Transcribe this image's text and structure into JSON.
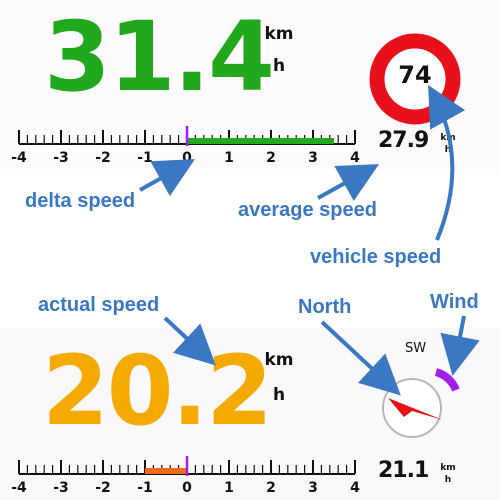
{
  "top_panel": {
    "delta_speed_value": "31.4",
    "speed_unit_top": "km",
    "speed_unit_bottom": "h",
    "scale_labels": [
      "-4",
      "-3",
      "-2",
      "-1",
      "0",
      "1",
      "2",
      "3",
      "4"
    ],
    "delta_bar": {
      "from": 0,
      "to": 3.5,
      "color": "#22a81c"
    },
    "average_speed_value": "27.9",
    "small_unit_top": "km",
    "small_unit_bottom": "h",
    "speed_limit_sign": {
      "value": "74",
      "ring_color": "#e8101a"
    }
  },
  "bottom_panel": {
    "actual_speed_value": "20.2",
    "speed_unit_top": "km",
    "speed_unit_bottom": "h",
    "scale_labels": [
      "-4",
      "-3",
      "-2",
      "-1",
      "0",
      "1",
      "2",
      "3",
      "4"
    ],
    "delta_bar": {
      "from": -1,
      "to": 0,
      "color": "#f06a1a"
    },
    "average_speed_value": "21.1",
    "small_unit_top": "km",
    "small_unit_bottom": "h",
    "compass": {
      "wind_label": "SW",
      "arrow_color": "#e81010",
      "wind_color": "#a020f0"
    }
  },
  "annotations": {
    "delta_speed": "delta speed",
    "average_speed": "average speed",
    "vehicle_speed": "vehicle speed",
    "actual_speed": "actual speed",
    "north": "North",
    "wind": "Wind",
    "color": "#3a78c4"
  },
  "colors": {
    "marker": "#a020f0",
    "speed_green": "#22a81c",
    "speed_orange": "#f4aa00"
  }
}
